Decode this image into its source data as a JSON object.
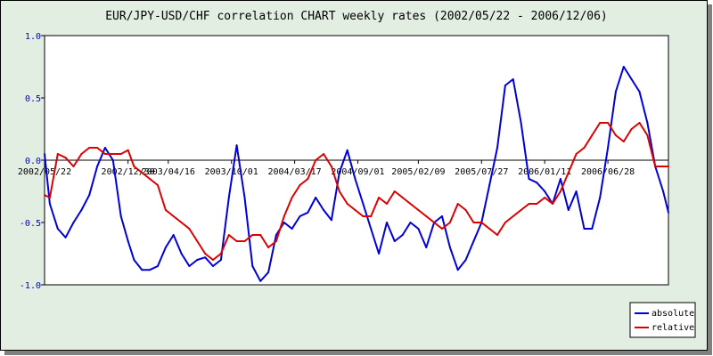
{
  "chart_data": {
    "type": "line",
    "title": "EUR/JPY-USD/CHF correlation CHART weekly rates (2002/05/22 - 2006/12/06)",
    "xlabel": "",
    "ylabel": "",
    "date_range": [
      "2002/05/22",
      "2006/12/06"
    ],
    "x_tick_labels": [
      "2002/05/22",
      "2002/12/30",
      "2003/04/16",
      "2003/10/01",
      "2004/03/17",
      "2004/09/01",
      "2005/02/09",
      "2005/07/27",
      "2006/01/11",
      "2006/06/28"
    ],
    "y_tick_labels": [
      "1.0",
      "0.5",
      "0.0",
      "-0.5",
      "-1.0"
    ],
    "ylim": [
      -1.0,
      1.0
    ],
    "grid": false,
    "legend_position": "bottom-right",
    "series": [
      {
        "name": "absolute",
        "color": "#0000dd",
        "x": [
          "2002/05/22",
          "2002/06/05",
          "2002/06/26",
          "2002/07/17",
          "2002/08/07",
          "2002/08/28",
          "2002/09/18",
          "2002/10/09",
          "2002/10/30",
          "2002/11/20",
          "2002/12/11",
          "2002/12/30",
          "2003/01/15",
          "2003/02/05",
          "2003/02/26",
          "2003/03/19",
          "2003/04/09",
          "2003/04/30",
          "2003/05/21",
          "2003/06/11",
          "2003/07/02",
          "2003/07/23",
          "2003/08/13",
          "2003/09/03",
          "2003/09/24",
          "2003/10/15",
          "2003/11/05",
          "2003/11/26",
          "2003/12/17",
          "2004/01/07",
          "2004/01/28",
          "2004/02/18",
          "2004/03/10",
          "2004/03/31",
          "2004/04/21",
          "2004/05/12",
          "2004/06/02",
          "2004/06/23",
          "2004/07/14",
          "2004/08/04",
          "2004/08/25",
          "2004/09/15",
          "2004/10/06",
          "2004/10/27",
          "2004/11/17",
          "2004/12/08",
          "2004/12/29",
          "2005/01/19",
          "2005/02/09",
          "2005/03/02",
          "2005/03/23",
          "2005/04/13",
          "2005/05/04",
          "2005/05/25",
          "2005/06/15",
          "2005/07/06",
          "2005/07/27",
          "2005/08/17",
          "2005/09/07",
          "2005/09/28",
          "2005/10/19",
          "2005/11/09",
          "2005/11/30",
          "2005/12/21",
          "2006/01/11",
          "2006/02/01",
          "2006/02/22",
          "2006/03/15",
          "2006/04/05",
          "2006/04/26",
          "2006/05/17",
          "2006/06/07",
          "2006/06/28",
          "2006/07/19",
          "2006/08/09",
          "2006/08/30",
          "2006/09/20",
          "2006/10/11",
          "2006/11/01",
          "2006/11/22",
          "2006/12/06"
        ],
        "values": [
          0.05,
          -0.35,
          -0.55,
          -0.62,
          -0.5,
          -0.4,
          -0.28,
          -0.05,
          0.1,
          0.0,
          -0.45,
          -0.65,
          -0.8,
          -0.88,
          -0.88,
          -0.85,
          -0.7,
          -0.6,
          -0.75,
          -0.85,
          -0.8,
          -0.78,
          -0.85,
          -0.8,
          -0.3,
          0.12,
          -0.3,
          -0.85,
          -0.97,
          -0.9,
          -0.6,
          -0.5,
          -0.55,
          -0.45,
          -0.42,
          -0.3,
          -0.4,
          -0.48,
          -0.1,
          0.08,
          -0.15,
          -0.35,
          -0.55,
          -0.75,
          -0.5,
          -0.65,
          -0.6,
          -0.5,
          -0.55,
          -0.7,
          -0.5,
          -0.45,
          -0.7,
          -0.88,
          -0.8,
          -0.65,
          -0.5,
          -0.2,
          0.1,
          0.6,
          0.65,
          0.3,
          -0.15,
          -0.18,
          -0.25,
          -0.35,
          -0.15,
          -0.4,
          -0.25,
          -0.55,
          -0.55,
          -0.3,
          0.1,
          0.55,
          0.75,
          0.65,
          0.55,
          0.3,
          -0.05,
          -0.25,
          -0.42
        ]
      },
      {
        "name": "relative",
        "color": "#dd0000",
        "x": [
          "2002/05/22",
          "2002/06/05",
          "2002/06/26",
          "2002/07/17",
          "2002/08/07",
          "2002/08/28",
          "2002/09/18",
          "2002/10/09",
          "2002/10/30",
          "2002/11/20",
          "2002/12/11",
          "2002/12/30",
          "2003/01/15",
          "2003/02/05",
          "2003/02/26",
          "2003/03/19",
          "2003/04/09",
          "2003/04/30",
          "2003/05/21",
          "2003/06/11",
          "2003/07/02",
          "2003/07/23",
          "2003/08/13",
          "2003/09/03",
          "2003/09/24",
          "2003/10/15",
          "2003/11/05",
          "2003/11/26",
          "2003/12/17",
          "2004/01/07",
          "2004/01/28",
          "2004/02/18",
          "2004/03/10",
          "2004/03/31",
          "2004/04/21",
          "2004/05/12",
          "2004/06/02",
          "2004/06/23",
          "2004/07/14",
          "2004/08/04",
          "2004/08/25",
          "2004/09/15",
          "2004/10/06",
          "2004/10/27",
          "2004/11/17",
          "2004/12/08",
          "2004/12/29",
          "2005/01/19",
          "2005/02/09",
          "2005/03/02",
          "2005/03/23",
          "2005/04/13",
          "2005/05/04",
          "2005/05/25",
          "2005/06/15",
          "2005/07/06",
          "2005/07/27",
          "2005/08/17",
          "2005/09/07",
          "2005/09/28",
          "2005/10/19",
          "2005/11/09",
          "2005/11/30",
          "2005/12/21",
          "2006/01/11",
          "2006/02/01",
          "2006/02/22",
          "2006/03/15",
          "2006/04/05",
          "2006/04/26",
          "2006/05/17",
          "2006/06/07",
          "2006/06/28",
          "2006/07/19",
          "2006/08/09",
          "2006/08/30",
          "2006/09/20",
          "2006/10/11",
          "2006/11/01",
          "2006/11/22",
          "2006/12/06"
        ],
        "values": [
          -0.28,
          -0.3,
          0.05,
          0.02,
          -0.05,
          0.05,
          0.1,
          0.1,
          0.05,
          0.05,
          0.05,
          0.08,
          -0.05,
          -0.1,
          -0.15,
          -0.2,
          -0.4,
          -0.45,
          -0.5,
          -0.55,
          -0.65,
          -0.75,
          -0.8,
          -0.75,
          -0.6,
          -0.65,
          -0.65,
          -0.6,
          -0.6,
          -0.7,
          -0.65,
          -0.45,
          -0.3,
          -0.2,
          -0.15,
          0.0,
          0.05,
          -0.05,
          -0.25,
          -0.35,
          -0.4,
          -0.45,
          -0.45,
          -0.3,
          -0.35,
          -0.25,
          -0.3,
          -0.35,
          -0.4,
          -0.45,
          -0.5,
          -0.55,
          -0.5,
          -0.35,
          -0.4,
          -0.5,
          -0.5,
          -0.55,
          -0.6,
          -0.5,
          -0.45,
          -0.4,
          -0.35,
          -0.35,
          -0.3,
          -0.35,
          -0.25,
          -0.1,
          0.05,
          0.1,
          0.2,
          0.3,
          0.3,
          0.2,
          0.15,
          0.25,
          0.3,
          0.2,
          -0.05,
          -0.05,
          -0.05
        ]
      }
    ]
  }
}
